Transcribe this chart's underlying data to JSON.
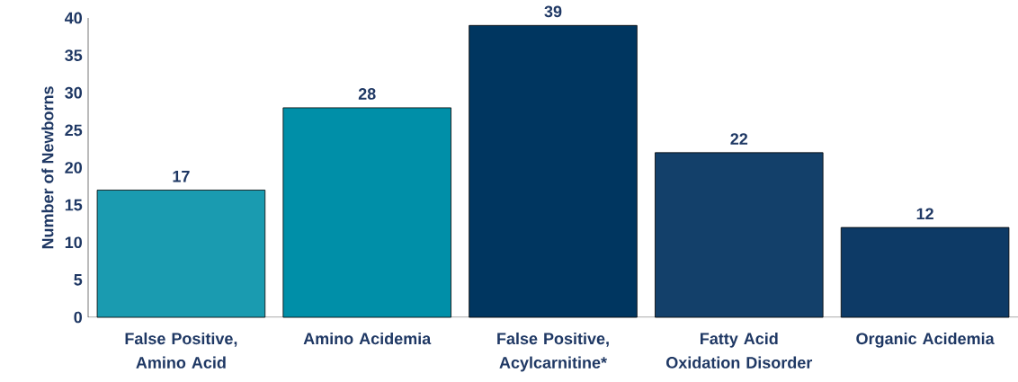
{
  "chart_data": {
    "type": "bar",
    "ylabel": "Number of Newborns",
    "categories": [
      "False Positive, Amino Acid",
      "Amino Acidemia",
      "False Positive, Acylcarnitine*",
      "Fatty Acid Oxidation Disorder",
      "Organic Acidemia"
    ],
    "values": [
      17,
      28,
      39,
      22,
      12
    ],
    "colors": [
      "#1a9bb0",
      "#008fa8",
      "#003660",
      "#13406a",
      "#0d3a66"
    ],
    "ylim": [
      0,
      40
    ],
    "yticks": [
      0,
      5,
      10,
      15,
      20,
      25,
      30,
      35,
      40
    ],
    "data_labels": true
  }
}
